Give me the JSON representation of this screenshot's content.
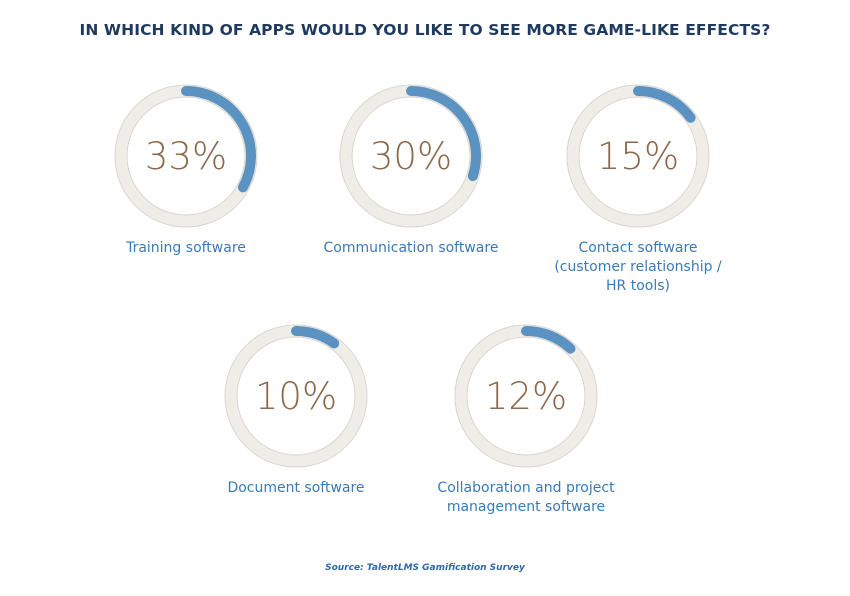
{
  "chart_data": {
    "type": "pie",
    "subtype": "radial-progress",
    "title": "IN WHICH KIND OF APPS WOULD YOU LIKE TO SEE MORE GAME-LIKE EFFECTS?",
    "unit": "%",
    "categories": [
      "Training software",
      "Communication software",
      "Contact software (customer relationship / HR tools)",
      "Document software",
      "Collaboration and project management software"
    ],
    "values": [
      33,
      30,
      15,
      10,
      12
    ],
    "labels": [
      "33%",
      "30%",
      "15%",
      "10%",
      "12%"
    ],
    "label_lines": [
      [
        "Training software"
      ],
      [
        "Communication software"
      ],
      [
        "Contact software",
        "(customer relationship /",
        "HR tools)"
      ],
      [
        "Document software"
      ],
      [
        "Collaboration and project",
        "management software"
      ]
    ],
    "colors": {
      "fill": "#5a92c2",
      "track": "#efede8",
      "track_border": "#d8d2ca",
      "value_text": "#8a6a4a",
      "label_text": "#3a7ab8",
      "title_text": "#1f3a5f"
    },
    "source": "Source: TalentLMS Gamification Survey"
  }
}
